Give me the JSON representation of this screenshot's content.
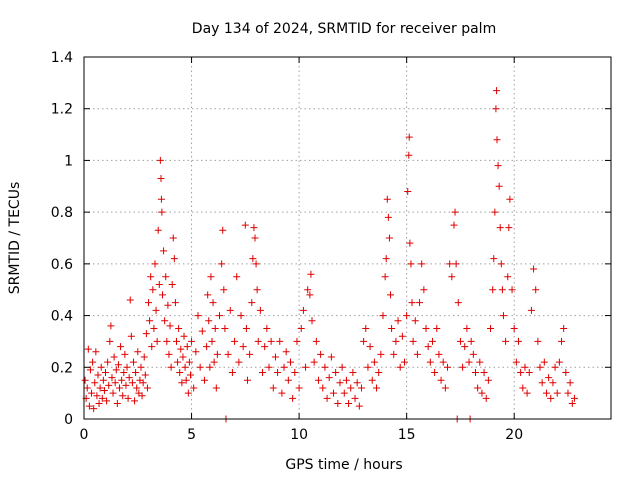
{
  "chart_data": {
    "type": "scatter",
    "title": "Day 134 of 2024, SRMTID for receiver palm",
    "xlabel": "GPS time / hours",
    "ylabel": "SRMTID / TECUs",
    "xlim": [
      0,
      24.5
    ],
    "ylim": [
      0,
      1.4
    ],
    "xticks": [
      0,
      5,
      10,
      15,
      20
    ],
    "yticks": [
      0,
      0.2,
      0.4,
      0.6,
      0.8,
      1,
      1.2,
      1.4
    ],
    "xtick_labels": [
      "0",
      "5",
      "10",
      "15",
      "20"
    ],
    "ytick_labels": [
      "0",
      "0.2",
      "0.4",
      "0.6",
      "0.8",
      "1",
      "1.2",
      "1.4"
    ],
    "grid": true,
    "marker": "+",
    "series": [
      {
        "name": "SRMTID",
        "color": "#e00000",
        "points": [
          [
            0.05,
            0.15
          ],
          [
            0.1,
            0.08
          ],
          [
            0.15,
            0.12
          ],
          [
            0.2,
            0.27
          ],
          [
            0.25,
            0.05
          ],
          [
            0.3,
            0.19
          ],
          [
            0.35,
            0.1
          ],
          [
            0.4,
            0.22
          ],
          [
            0.45,
            0.04
          ],
          [
            0.5,
            0.14
          ],
          [
            0.55,
            0.26
          ],
          [
            0.6,
            0.09
          ],
          [
            0.65,
            0.17
          ],
          [
            0.7,
            0.06
          ],
          [
            0.75,
            0.12
          ],
          [
            0.8,
            0.2
          ],
          [
            0.85,
            0.08
          ],
          [
            0.9,
            0.15
          ],
          [
            0.95,
            0.11
          ],
          [
            1.0,
            0.18
          ],
          [
            1.05,
            0.07
          ],
          [
            1.1,
            0.22
          ],
          [
            1.15,
            0.13
          ],
          [
            1.2,
            0.3
          ],
          [
            1.25,
            0.36
          ],
          [
            1.3,
            0.16
          ],
          [
            1.35,
            0.1
          ],
          [
            1.4,
            0.24
          ],
          [
            1.45,
            0.14
          ],
          [
            1.5,
            0.19
          ],
          [
            1.55,
            0.06
          ],
          [
            1.6,
            0.21
          ],
          [
            1.65,
            0.12
          ],
          [
            1.7,
            0.28
          ],
          [
            1.75,
            0.15
          ],
          [
            1.8,
            0.09
          ],
          [
            1.85,
            0.18
          ],
          [
            1.9,
            0.25
          ],
          [
            1.95,
            0.13
          ],
          [
            2.0,
            0.2
          ],
          [
            2.05,
            0.08
          ],
          [
            2.1,
            0.16
          ],
          [
            2.15,
            0.46
          ],
          [
            2.2,
            0.32
          ],
          [
            2.25,
            0.14
          ],
          [
            2.3,
            0.22
          ],
          [
            2.35,
            0.07
          ],
          [
            2.4,
            0.18
          ],
          [
            2.45,
            0.12
          ],
          [
            2.5,
            0.26
          ],
          [
            2.55,
            0.1
          ],
          [
            2.6,
            0.15
          ],
          [
            2.65,
            0.2
          ],
          [
            2.7,
            0.09
          ],
          [
            2.75,
            0.14
          ],
          [
            2.8,
            0.24
          ],
          [
            2.85,
            0.17
          ],
          [
            2.9,
            0.33
          ],
          [
            2.95,
            0.12
          ],
          [
            3.0,
            0.45
          ],
          [
            3.05,
            0.38
          ],
          [
            3.1,
            0.55
          ],
          [
            3.15,
            0.28
          ],
          [
            3.2,
            0.5
          ],
          [
            3.25,
            0.35
          ],
          [
            3.3,
            0.6
          ],
          [
            3.35,
            0.42
          ],
          [
            3.4,
            0.3
          ],
          [
            3.45,
            0.73
          ],
          [
            3.5,
            0.52
          ],
          [
            3.55,
            1.0
          ],
          [
            3.58,
            0.93
          ],
          [
            3.6,
            0.85
          ],
          [
            3.62,
            0.8
          ],
          [
            3.65,
            0.48
          ],
          [
            3.7,
            0.65
          ],
          [
            3.75,
            0.38
          ],
          [
            3.8,
            0.55
          ],
          [
            3.85,
            0.3
          ],
          [
            3.9,
            0.44
          ],
          [
            3.95,
            0.25
          ],
          [
            4.0,
            0.36
          ],
          [
            4.05,
            0.2
          ],
          [
            4.1,
            0.52
          ],
          [
            4.15,
            0.7
          ],
          [
            4.2,
            0.62
          ],
          [
            4.25,
            0.45
          ],
          [
            4.3,
            0.3
          ],
          [
            4.35,
            0.22
          ],
          [
            4.4,
            0.35
          ],
          [
            4.45,
            0.18
          ],
          [
            4.5,
            0.27
          ],
          [
            4.55,
            0.14
          ],
          [
            4.6,
            0.24
          ],
          [
            4.65,
            0.32
          ],
          [
            4.7,
            0.2
          ],
          [
            4.75,
            0.15
          ],
          [
            4.8,
            0.28
          ],
          [
            4.85,
            0.1
          ],
          [
            4.9,
            0.22
          ],
          [
            4.95,
            0.17
          ],
          [
            5.0,
            0.3
          ],
          [
            5.1,
            0.12
          ],
          [
            5.2,
            0.26
          ],
          [
            5.3,
            0.4
          ],
          [
            5.4,
            0.2
          ],
          [
            5.5,
            0.34
          ],
          [
            5.6,
            0.15
          ],
          [
            5.7,
            0.28
          ],
          [
            5.75,
            0.48
          ],
          [
            5.8,
            0.38
          ],
          [
            5.85,
            0.2
          ],
          [
            5.9,
            0.55
          ],
          [
            5.95,
            0.3
          ],
          [
            6.0,
            0.45
          ],
          [
            6.05,
            0.22
          ],
          [
            6.1,
            0.35
          ],
          [
            6.15,
            0.12
          ],
          [
            6.2,
            0.25
          ],
          [
            6.3,
            0.4
          ],
          [
            6.4,
            0.6
          ],
          [
            6.45,
            0.73
          ],
          [
            6.5,
            0.5
          ],
          [
            6.55,
            0.35
          ],
          [
            6.6,
            0.0
          ],
          [
            6.7,
            0.25
          ],
          [
            6.8,
            0.42
          ],
          [
            6.9,
            0.18
          ],
          [
            7.0,
            0.3
          ],
          [
            7.1,
            0.55
          ],
          [
            7.2,
            0.22
          ],
          [
            7.3,
            0.4
          ],
          [
            7.4,
            0.28
          ],
          [
            7.5,
            0.75
          ],
          [
            7.55,
            0.35
          ],
          [
            7.6,
            0.15
          ],
          [
            7.7,
            0.25
          ],
          [
            7.8,
            0.45
          ],
          [
            7.85,
            0.62
          ],
          [
            7.9,
            0.74
          ],
          [
            7.95,
            0.7
          ],
          [
            8.0,
            0.6
          ],
          [
            8.05,
            0.5
          ],
          [
            8.1,
            0.3
          ],
          [
            8.2,
            0.42
          ],
          [
            8.3,
            0.18
          ],
          [
            8.4,
            0.28
          ],
          [
            8.5,
            0.35
          ],
          [
            8.6,
            0.2
          ],
          [
            8.7,
            0.3
          ],
          [
            8.8,
            0.12
          ],
          [
            8.9,
            0.24
          ],
          [
            9.0,
            0.18
          ],
          [
            9.1,
            0.3
          ],
          [
            9.2,
            0.1
          ],
          [
            9.3,
            0.2
          ],
          [
            9.4,
            0.26
          ],
          [
            9.5,
            0.15
          ],
          [
            9.6,
            0.22
          ],
          [
            9.7,
            0.08
          ],
          [
            9.8,
            0.18
          ],
          [
            9.9,
            0.3
          ],
          [
            10.0,
            0.12
          ],
          [
            10.1,
            0.35
          ],
          [
            10.2,
            0.42
          ],
          [
            10.3,
            0.2
          ],
          [
            10.4,
            0.5
          ],
          [
            10.5,
            0.48
          ],
          [
            10.55,
            0.56
          ],
          [
            10.6,
            0.38
          ],
          [
            10.7,
            0.22
          ],
          [
            10.8,
            0.3
          ],
          [
            10.9,
            0.15
          ],
          [
            11.0,
            0.25
          ],
          [
            11.1,
            0.12
          ],
          [
            11.2,
            0.2
          ],
          [
            11.3,
            0.08
          ],
          [
            11.4,
            0.16
          ],
          [
            11.5,
            0.24
          ],
          [
            11.6,
            0.1
          ],
          [
            11.7,
            0.18
          ],
          [
            11.8,
            0.06
          ],
          [
            11.9,
            0.14
          ],
          [
            12.0,
            0.2
          ],
          [
            12.1,
            0.1
          ],
          [
            12.2,
            0.15
          ],
          [
            12.3,
            0.06
          ],
          [
            12.4,
            0.12
          ],
          [
            12.5,
            0.18
          ],
          [
            12.6,
            0.08
          ],
          [
            12.7,
            0.14
          ],
          [
            12.8,
            0.05
          ],
          [
            12.9,
            0.12
          ],
          [
            13.0,
            0.3
          ],
          [
            13.1,
            0.35
          ],
          [
            13.2,
            0.2
          ],
          [
            13.3,
            0.28
          ],
          [
            13.4,
            0.15
          ],
          [
            13.5,
            0.22
          ],
          [
            13.6,
            0.12
          ],
          [
            13.7,
            0.18
          ],
          [
            13.8,
            0.25
          ],
          [
            13.9,
            0.4
          ],
          [
            14.0,
            0.55
          ],
          [
            14.05,
            0.62
          ],
          [
            14.1,
            0.85
          ],
          [
            14.15,
            0.78
          ],
          [
            14.2,
            0.7
          ],
          [
            14.25,
            0.48
          ],
          [
            14.3,
            0.35
          ],
          [
            14.4,
            0.25
          ],
          [
            14.5,
            0.3
          ],
          [
            14.6,
            0.38
          ],
          [
            14.7,
            0.2
          ],
          [
            14.8,
            0.32
          ],
          [
            14.9,
            0.22
          ],
          [
            15.0,
            0.4
          ],
          [
            15.05,
            0.88
          ],
          [
            15.1,
            1.02
          ],
          [
            15.12,
            1.09
          ],
          [
            15.15,
            0.68
          ],
          [
            15.2,
            0.6
          ],
          [
            15.25,
            0.45
          ],
          [
            15.3,
            0.3
          ],
          [
            15.4,
            0.38
          ],
          [
            15.5,
            0.25
          ],
          [
            15.6,
            0.45
          ],
          [
            15.7,
            0.6
          ],
          [
            15.8,
            0.5
          ],
          [
            15.9,
            0.35
          ],
          [
            16.0,
            0.28
          ],
          [
            16.1,
            0.22
          ],
          [
            16.2,
            0.3
          ],
          [
            16.3,
            0.18
          ],
          [
            16.4,
            0.35
          ],
          [
            16.5,
            0.25
          ],
          [
            16.6,
            0.15
          ],
          [
            16.7,
            0.22
          ],
          [
            16.8,
            0.12
          ],
          [
            16.9,
            0.2
          ],
          [
            17.0,
            0.6
          ],
          [
            17.1,
            0.55
          ],
          [
            17.2,
            0.75
          ],
          [
            17.25,
            0.8
          ],
          [
            17.3,
            0.6
          ],
          [
            17.35,
            0.0
          ],
          [
            17.4,
            0.45
          ],
          [
            17.5,
            0.3
          ],
          [
            17.6,
            0.2
          ],
          [
            17.7,
            0.28
          ],
          [
            17.8,
            0.35
          ],
          [
            17.9,
            0.22
          ],
          [
            17.95,
            0.0
          ],
          [
            18.0,
            0.3
          ],
          [
            18.1,
            0.25
          ],
          [
            18.2,
            0.18
          ],
          [
            18.3,
            0.12
          ],
          [
            18.4,
            0.22
          ],
          [
            18.5,
            0.1
          ],
          [
            18.6,
            0.18
          ],
          [
            18.7,
            0.08
          ],
          [
            18.8,
            0.15
          ],
          [
            18.9,
            0.35
          ],
          [
            19.0,
            0.5
          ],
          [
            19.05,
            0.62
          ],
          [
            19.1,
            0.8
          ],
          [
            19.15,
            1.2
          ],
          [
            19.18,
            1.27
          ],
          [
            19.2,
            1.08
          ],
          [
            19.25,
            0.98
          ],
          [
            19.3,
            0.9
          ],
          [
            19.35,
            0.74
          ],
          [
            19.4,
            0.6
          ],
          [
            19.45,
            0.5
          ],
          [
            19.5,
            0.4
          ],
          [
            19.6,
            0.3
          ],
          [
            19.7,
            0.55
          ],
          [
            19.75,
            0.74
          ],
          [
            19.8,
            0.85
          ],
          [
            19.9,
            0.5
          ],
          [
            20.0,
            0.35
          ],
          [
            20.1,
            0.22
          ],
          [
            20.2,
            0.3
          ],
          [
            20.3,
            0.18
          ],
          [
            20.4,
            0.12
          ],
          [
            20.5,
            0.2
          ],
          [
            20.6,
            0.1
          ],
          [
            20.7,
            0.18
          ],
          [
            20.8,
            0.42
          ],
          [
            20.9,
            0.58
          ],
          [
            21.0,
            0.5
          ],
          [
            21.1,
            0.3
          ],
          [
            21.2,
            0.2
          ],
          [
            21.3,
            0.14
          ],
          [
            21.4,
            0.22
          ],
          [
            21.5,
            0.1
          ],
          [
            21.6,
            0.16
          ],
          [
            21.7,
            0.08
          ],
          [
            21.8,
            0.14
          ],
          [
            21.9,
            0.2
          ],
          [
            22.0,
            0.1
          ],
          [
            22.1,
            0.22
          ],
          [
            22.2,
            0.3
          ],
          [
            22.3,
            0.35
          ],
          [
            22.4,
            0.18
          ],
          [
            22.5,
            0.1
          ],
          [
            22.6,
            0.14
          ],
          [
            22.7,
            0.06
          ],
          [
            22.8,
            0.08
          ]
        ]
      }
    ]
  }
}
